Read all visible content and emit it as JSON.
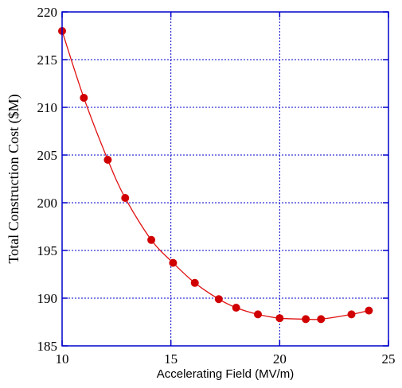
{
  "chart_data": {
    "type": "line",
    "title": "",
    "xlabel": "Accelerating Field (MV/m)",
    "ylabel": "Total Construction Cost ($M)",
    "xlim": [
      10,
      25
    ],
    "ylim": [
      185,
      220
    ],
    "xticks": [
      10,
      15,
      20,
      25
    ],
    "yticks": [
      185,
      190,
      195,
      200,
      205,
      210,
      215,
      220
    ],
    "grid": true,
    "line_color": "#e01010",
    "marker_color": "#d10000",
    "frame_color": "#0000cc",
    "grid_color": "#0000cc",
    "series": [
      {
        "x": [
          10.0,
          11.0,
          12.1,
          12.9,
          14.1,
          15.1,
          16.1,
          17.2,
          18.0,
          19.0,
          20.0,
          21.2,
          21.9,
          23.3,
          24.1
        ],
        "y": [
          218.0,
          211.0,
          204.5,
          200.5,
          196.1,
          193.7,
          191.6,
          189.9,
          189.0,
          188.3,
          187.9,
          187.8,
          187.8,
          188.3,
          188.7
        ]
      }
    ]
  }
}
